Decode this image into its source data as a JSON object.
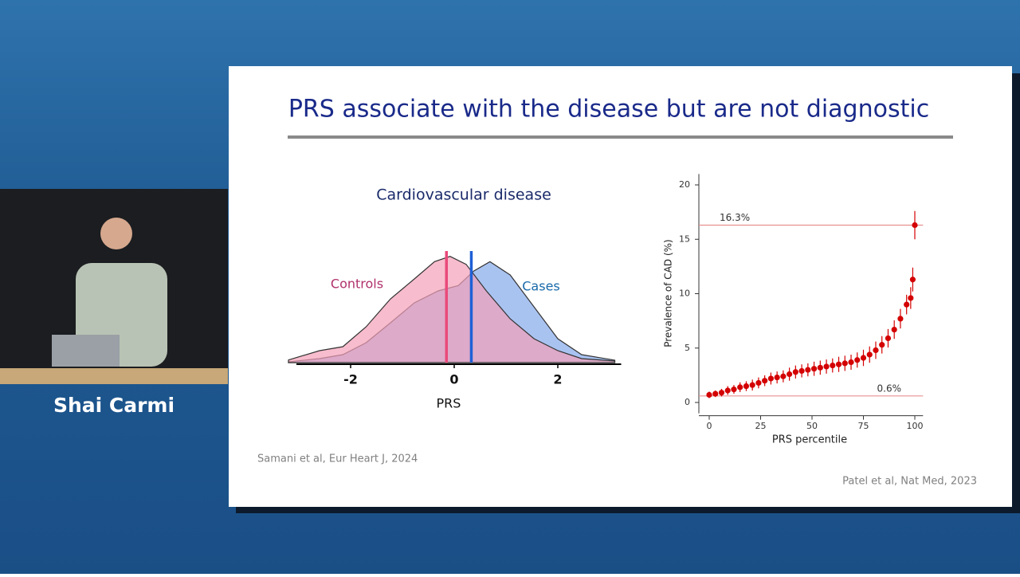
{
  "speaker": "Shai Carmi",
  "slide": {
    "title": "PRS associate with the disease but are not diagnostic",
    "left_citation": "Samani et al, Eur Heart J, 2024",
    "right_citation": "Patel et al, Nat Med, 2023"
  },
  "chart_data": [
    {
      "type": "area",
      "title": "Cardiovascular disease",
      "x_label": "PRS",
      "xlim": [
        -3.2,
        3.3
      ],
      "ylim": [
        0,
        0.45
      ],
      "xticks": [
        -2,
        0,
        2
      ],
      "series": [
        {
          "name": "Controls",
          "color": "#f4a0b8",
          "line_color": "#e94a7a",
          "label_color": "#b0306a",
          "mean": -0.15,
          "x": [
            -3.2,
            -2.6,
            -2.15,
            -1.7,
            -1.23,
            -0.77,
            -0.38,
            -0.08,
            0.23,
            0.62,
            1.08,
            1.54,
            2,
            2.46,
            3.1
          ],
          "values": [
            0.01,
            0.045,
            0.06,
            0.135,
            0.24,
            0.315,
            0.38,
            0.4,
            0.37,
            0.27,
            0.165,
            0.09,
            0.045,
            0.015,
            0.006
          ]
        },
        {
          "name": "Cases",
          "color": "#9ab8ee",
          "line_color": "#1f5fd6",
          "label_color": "#1a6aaa",
          "mean": 0.33,
          "x": [
            -3.2,
            -2.6,
            -2.15,
            -1.7,
            -1.23,
            -0.77,
            -0.31,
            0.08,
            0.38,
            0.69,
            1.08,
            1.54,
            2,
            2.46,
            3.1
          ],
          "values": [
            0.003,
            0.015,
            0.03,
            0.075,
            0.15,
            0.225,
            0.27,
            0.29,
            0.345,
            0.38,
            0.33,
            0.21,
            0.09,
            0.03,
            0.009
          ]
        }
      ]
    },
    {
      "type": "scatter",
      "x_label": "PRS percentile",
      "y_label": "Prevalence of CAD (%)",
      "xlim": [
        -5,
        104
      ],
      "ylim": [
        -1,
        21
      ],
      "xticks": [
        0,
        25,
        50,
        75,
        100
      ],
      "yticks": [
        0,
        5,
        10,
        15,
        20
      ],
      "color": "#d40000",
      "ref_color": "#e89090",
      "hlines": [
        {
          "value": 16.3,
          "label": "16.3%"
        },
        {
          "value": 0.6,
          "label": "0.6%"
        }
      ],
      "x": [
        0,
        3,
        6,
        9,
        12,
        15,
        18,
        21,
        24,
        27,
        30,
        33,
        36,
        39,
        42,
        45,
        48,
        51,
        54,
        57,
        60,
        63,
        66,
        69,
        72,
        75,
        78,
        81,
        84,
        87,
        90,
        93,
        96,
        98,
        99,
        100
      ],
      "values": [
        0.7,
        0.8,
        0.9,
        1.1,
        1.2,
        1.4,
        1.5,
        1.6,
        1.8,
        2.0,
        2.2,
        2.3,
        2.4,
        2.6,
        2.8,
        2.9,
        3.0,
        3.1,
        3.2,
        3.3,
        3.4,
        3.5,
        3.6,
        3.7,
        3.9,
        4.1,
        4.4,
        4.8,
        5.3,
        5.9,
        6.7,
        7.7,
        9.0,
        9.6,
        11.3,
        16.3
      ],
      "errors": [
        0.3,
        0.3,
        0.35,
        0.4,
        0.4,
        0.45,
        0.45,
        0.5,
        0.5,
        0.5,
        0.55,
        0.55,
        0.55,
        0.6,
        0.6,
        0.6,
        0.6,
        0.65,
        0.65,
        0.65,
        0.65,
        0.7,
        0.7,
        0.7,
        0.7,
        0.75,
        0.75,
        0.8,
        0.8,
        0.85,
        0.85,
        0.9,
        0.9,
        1.0,
        1.1,
        1.3
      ]
    }
  ]
}
